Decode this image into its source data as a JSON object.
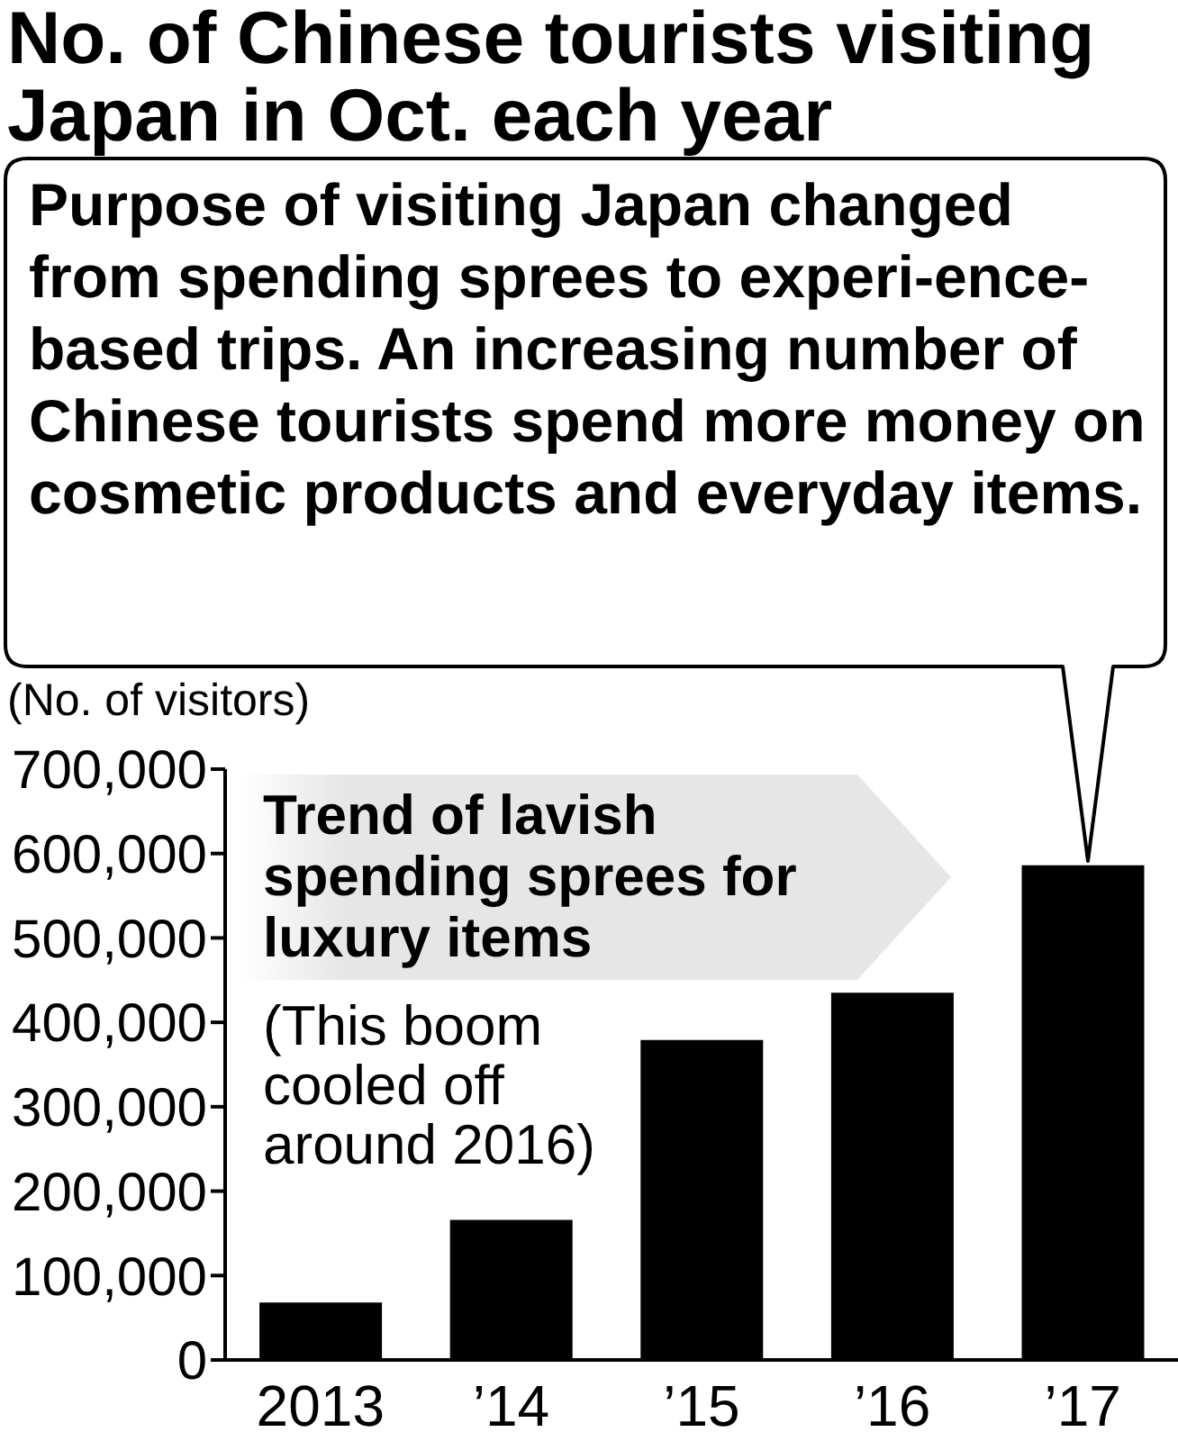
{
  "chart_data": {
    "type": "bar",
    "title": "No. of Chinese tourists visiting Japan in Oct. each year",
    "ylabel": "(No. of visitors)",
    "categories": [
      "2013",
      "’14",
      "’15",
      "’16",
      "’17"
    ],
    "values": [
      68000,
      166000,
      379000,
      435000,
      586000
    ],
    "color": "#000000",
    "ylim": [
      0,
      700000
    ],
    "yticks": [
      {
        "value": 0,
        "label": "0"
      },
      {
        "value": 100000,
        "label": "100,000"
      },
      {
        "value": 200000,
        "label": "200,000"
      },
      {
        "value": 300000,
        "label": "300,000"
      },
      {
        "value": 400000,
        "label": "400,000"
      },
      {
        "value": 500000,
        "label": "500,000"
      },
      {
        "value": 600000,
        "label": "600,000"
      },
      {
        "value": 700000,
        "label": "700,000"
      }
    ],
    "grid": false,
    "legend": false,
    "annotations": [
      "Purpose of visiting Japan changed from spending sprees to experi-ence-based trips. An increasing number of Chinese tourists spend more money on cosmetic products and everyday items.",
      "Trend of lavish spending sprees for luxury items",
      "(This boom cooled off around 2016)"
    ]
  }
}
